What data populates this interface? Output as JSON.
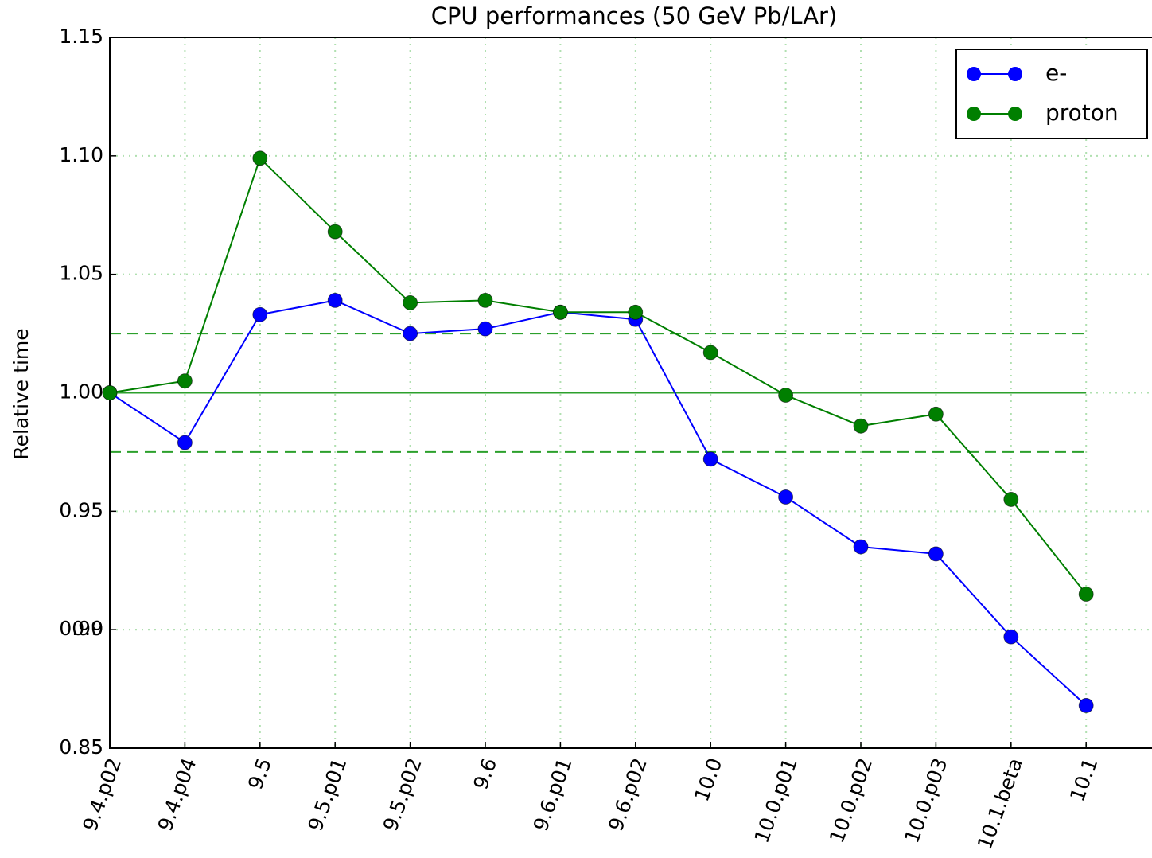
{
  "chart_data": {
    "type": "line",
    "title": "CPU performances (50 GeV Pb/LAr)",
    "y_label": "Relative time",
    "categories": [
      "9.4.p02",
      "9.4.p04",
      "9.5",
      "9.5.p01",
      "9.5.p02",
      "9.6",
      "9.6.p01",
      "9.6.p02",
      "10.0",
      "10.0.p01",
      "10.0.p02",
      "10.0.p03",
      "10.1.beta",
      "10.1"
    ],
    "series": [
      {
        "name": "e-",
        "color": "#0000ff",
        "values": [
          1.0,
          0.979,
          1.033,
          1.039,
          1.025,
          1.027,
          1.034,
          1.031,
          0.972,
          0.956,
          0.935,
          0.932,
          0.897,
          0.868
        ]
      },
      {
        "name": "proton",
        "color": "#007f00",
        "values": [
          1.0,
          1.005,
          1.099,
          1.068,
          1.038,
          1.039,
          1.034,
          1.034,
          1.017,
          0.999,
          0.986,
          0.991,
          0.955,
          0.915
        ]
      }
    ],
    "reference_lines": [
      {
        "value": 1.0,
        "style": "solid",
        "color": "#2ca02c"
      },
      {
        "value": 1.025,
        "style": "dashed",
        "color": "#2ca02c"
      },
      {
        "value": 0.975,
        "style": "dashed",
        "color": "#2ca02c"
      }
    ],
    "ylim": [
      0.85,
      1.15
    ],
    "yticks": [
      0.85,
      0.9,
      {
        "value": 0.9,
        "label": "0.90"
      },
      0.95,
      {
        "value": 1.0,
        "label": "1.00"
      },
      1.05,
      {
        "value": 1.1,
        "label": "1.10"
      },
      1.15
    ],
    "grid": true,
    "legend": "upper right"
  }
}
